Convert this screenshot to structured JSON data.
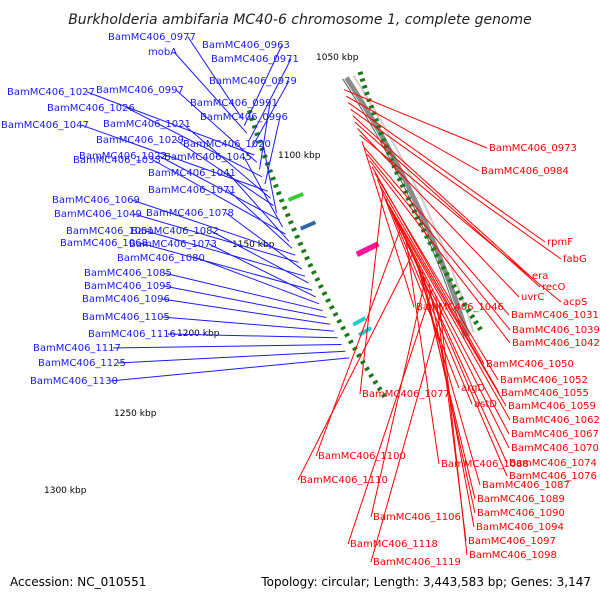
{
  "title": "Burkholderia ambifaria MC40-6 chromosome 1, complete genome",
  "footer": {
    "accession": "Accession: NC_010551",
    "topology": "Topology: circular; Length: 3,443,583 bp; Genes: 3,147"
  },
  "colors": {
    "forward": "#1a1aff",
    "reverse": "#ff0000",
    "backbone": "#8c8c8c",
    "tick": "#1a7a1a"
  },
  "scale_ticks": [
    {
      "text": "1050 kbp"
    },
    {
      "text": "1100 kbp"
    },
    {
      "text": "1150 kbp"
    },
    {
      "text": "1200 kbp"
    },
    {
      "text": "1250 kbp"
    },
    {
      "text": "1300 kbp"
    }
  ],
  "left_labels": [
    {
      "text": "BamMC406_0977"
    },
    {
      "text": "BamMC406_0963"
    },
    {
      "text": "mobA"
    },
    {
      "text": "BamMC406_0971"
    },
    {
      "text": "BamMC406_0979"
    },
    {
      "text": "BamMC406_1027"
    },
    {
      "text": "BamMC406_0997"
    },
    {
      "text": "BamMC406_0991"
    },
    {
      "text": "BamMC406_1026"
    },
    {
      "text": "BamMC406_0996"
    },
    {
      "text": "BamMC406_1047"
    },
    {
      "text": "BamMC406_1021"
    },
    {
      "text": "BamMC406_1029"
    },
    {
      "text": "BamMC406_1020"
    },
    {
      "text": "BamMC406_1022"
    },
    {
      "text": "BamMC406_1045"
    },
    {
      "text": "BamMC406_1033"
    },
    {
      "text": "BamMC406_1041"
    },
    {
      "text": "BamMC406_1071"
    },
    {
      "text": "BamMC406_1069"
    },
    {
      "text": "BamMC406_1049"
    },
    {
      "text": "BamMC406_1078"
    },
    {
      "text": "BamMC406_1051"
    },
    {
      "text": "BamMC406_1082"
    },
    {
      "text": "BamMC406_1068"
    },
    {
      "text": "BamMC406_1073"
    },
    {
      "text": "BamMC406_1080"
    },
    {
      "text": "BamMC406_1085"
    },
    {
      "text": "BamMC406_1095"
    },
    {
      "text": "BamMC406_1096"
    },
    {
      "text": "BamMC406_1105"
    },
    {
      "text": "BamMC406_1116"
    },
    {
      "text": "BamMC406_1117"
    },
    {
      "text": "BamMC406_1125"
    },
    {
      "text": "BamMC406_1130"
    }
  ],
  "right_labels": [
    {
      "text": "BamMC406_0973"
    },
    {
      "text": "BamMC406_0984"
    },
    {
      "text": "rpmF"
    },
    {
      "text": "fabG"
    },
    {
      "text": "era"
    },
    {
      "text": "recO"
    },
    {
      "text": "uvrC"
    },
    {
      "text": "acpS"
    },
    {
      "text": "BamMC406_1046"
    },
    {
      "text": "BamMC406_1031"
    },
    {
      "text": "BamMC406_1039"
    },
    {
      "text": "BamMC406_1042"
    },
    {
      "text": "BamMC406_1050"
    },
    {
      "text": "BamMC406_1052"
    },
    {
      "text": "argD"
    },
    {
      "text": "BamMC406_1055"
    },
    {
      "text": "BamMC406_1077"
    },
    {
      "text": "astD"
    },
    {
      "text": "BamMC406_1059"
    },
    {
      "text": "BamMC406_1062"
    },
    {
      "text": "BamMC406_1067"
    },
    {
      "text": "BamMC406_1070"
    },
    {
      "text": "BamMC406_1100"
    },
    {
      "text": "BamMC406_1074"
    },
    {
      "text": "BamMC406_1088"
    },
    {
      "text": "BamMC406_1076"
    },
    {
      "text": "BamMC406_1110"
    },
    {
      "text": "BamMC406_1087"
    },
    {
      "text": "BamMC406_1089"
    },
    {
      "text": "BamMC406_1090"
    },
    {
      "text": "BamMC406_1106"
    },
    {
      "text": "BamMC406_1094"
    },
    {
      "text": "BamMC406_1118"
    },
    {
      "text": "BamMC406_1097"
    },
    {
      "text": "BamMC406_1098"
    },
    {
      "text": "BamMC406_1119"
    }
  ]
}
